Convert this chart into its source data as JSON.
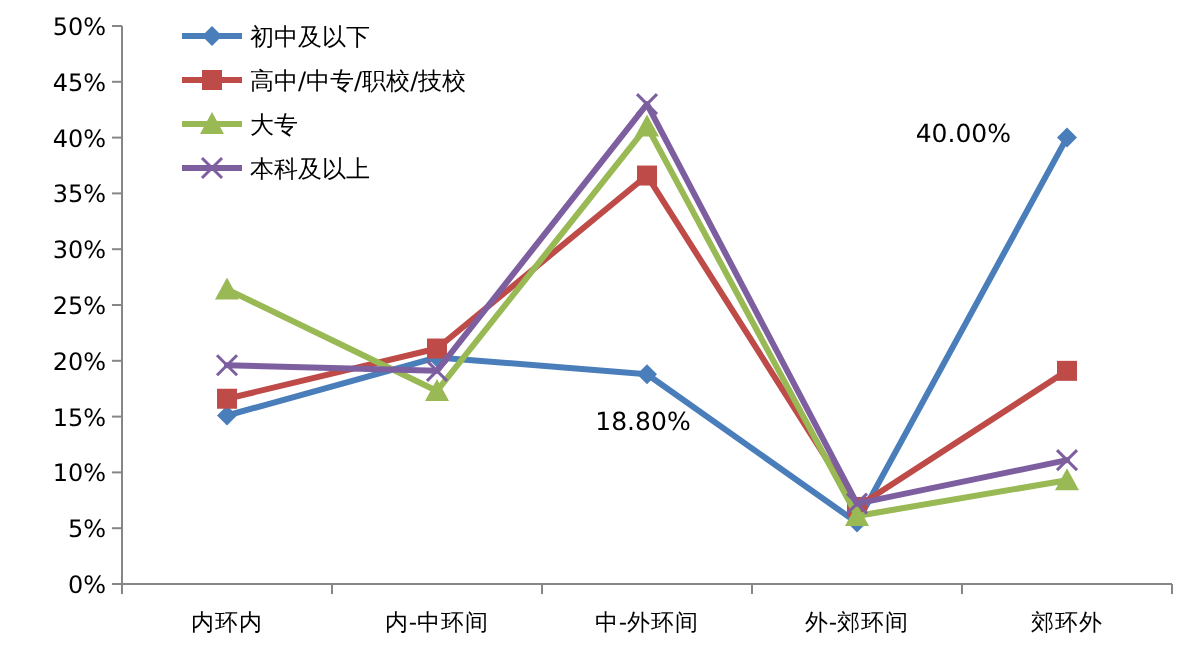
{
  "chart_data": {
    "type": "line",
    "categories": [
      "内环内",
      "内-中环间",
      "中-外环间",
      "外-郊环间",
      "郊环外"
    ],
    "series": [
      {
        "name": "初中及以下",
        "color": "#4a7ebb",
        "marker": "diamond",
        "values": [
          15.1,
          20.3,
          18.8,
          5.5,
          40.0
        ],
        "value_labels": [
          null,
          null,
          "18.80%",
          null,
          "40.00%"
        ]
      },
      {
        "name": "高中/中专/职校/技校",
        "color": "#be4b48",
        "marker": "square",
        "values": [
          16.6,
          21.1,
          36.6,
          6.9,
          19.1
        ]
      },
      {
        "name": "大专",
        "color": "#98b954",
        "marker": "triangle",
        "values": [
          26.4,
          17.3,
          41.0,
          6.1,
          9.3
        ]
      },
      {
        "name": "本科及以上",
        "color": "#7d5fa0",
        "marker": "cross",
        "values": [
          19.6,
          19.1,
          43.0,
          7.2,
          11.1
        ]
      }
    ],
    "ylim": [
      0,
      50
    ],
    "yticks": [
      {
        "value": 0,
        "label": "0%"
      },
      {
        "value": 5,
        "label": "5%"
      },
      {
        "value": 10,
        "label": "10%"
      },
      {
        "value": 15,
        "label": "15%"
      },
      {
        "value": 20,
        "label": "20%"
      },
      {
        "value": 25,
        "label": "25%"
      },
      {
        "value": 30,
        "label": "30%"
      },
      {
        "value": 35,
        "label": "35%"
      },
      {
        "value": 40,
        "label": "40%"
      },
      {
        "value": 45,
        "label": "45%"
      },
      {
        "value": 50,
        "label": "50%"
      }
    ],
    "grid": false,
    "legend": "top left",
    "line_style": "solid"
  }
}
